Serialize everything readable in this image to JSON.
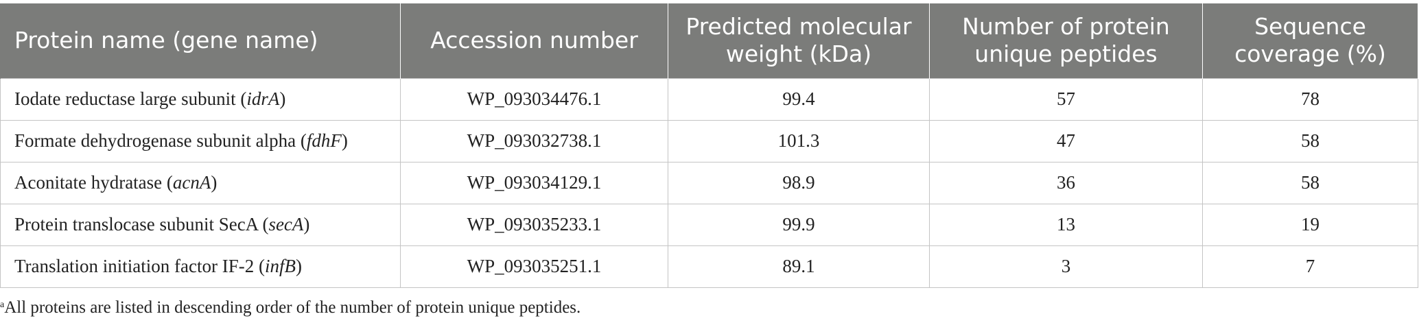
{
  "table": {
    "headers": [
      "Protein name (gene name)",
      "Accession number",
      "Predicted molecular weight (kDa)",
      "Number of protein unique peptides",
      "Sequence coverage (%)"
    ],
    "rows": [
      {
        "protein": "Iodate reductase large subunit (",
        "gene": "idrA",
        "close": ")",
        "accession": "WP_093034476.1",
        "mw": "99.4",
        "peptides": "57",
        "coverage": "78"
      },
      {
        "protein": "Formate dehydrogenase subunit alpha (",
        "gene": "fdhF",
        "close": ")",
        "accession": "WP_093032738.1",
        "mw": "101.3",
        "peptides": "47",
        "coverage": "58"
      },
      {
        "protein": "Aconitate hydratase (",
        "gene": "acnA",
        "close": ")",
        "accession": "WP_093034129.1",
        "mw": "98.9",
        "peptides": "36",
        "coverage": "58"
      },
      {
        "protein": "Protein translocase subunit SecA (",
        "gene": "secA",
        "close": ")",
        "accession": "WP_093035233.1",
        "mw": "99.9",
        "peptides": "13",
        "coverage": "19"
      },
      {
        "protein": "Translation initiation factor IF-2 (",
        "gene": "infB",
        "close": ")",
        "accession": "WP_093035251.1",
        "mw": "89.1",
        "peptides": "3",
        "coverage": "7"
      }
    ]
  },
  "footnote": {
    "marker": "a",
    "text": "All proteins are listed in descending order of the number of protein unique peptides."
  }
}
